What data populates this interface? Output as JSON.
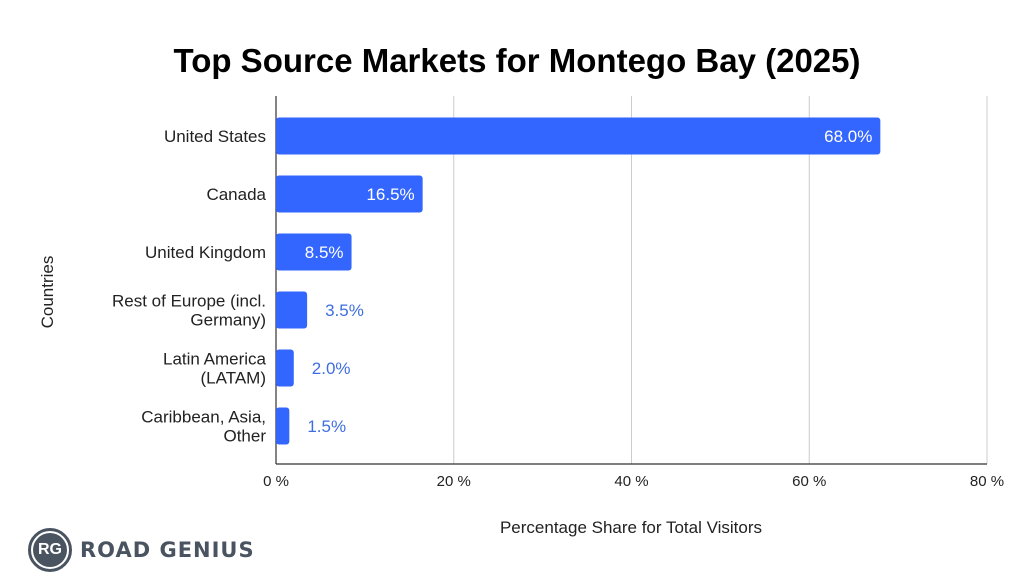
{
  "chart_data": {
    "type": "bar",
    "orientation": "horizontal",
    "title": "Top Source Markets for Montego Bay (2025)",
    "xlabel": "Percentage Share for Total Visitors",
    "ylabel": "Countries",
    "categories": [
      [
        "United States"
      ],
      [
        "Canada"
      ],
      [
        "United Kingdom"
      ],
      [
        "Rest of Europe (incl.",
        "Germany)"
      ],
      [
        "Latin America",
        "(LATAM)"
      ],
      [
        "Caribbean, Asia,",
        "Other"
      ]
    ],
    "values": [
      68.0,
      16.5,
      8.5,
      3.5,
      2.0,
      1.5
    ],
    "value_labels": [
      "68.0%",
      "16.5%",
      "8.5%",
      "3.5%",
      "2.0%",
      "1.5%"
    ],
    "xlim": [
      0,
      80
    ],
    "x_ticks": [
      0,
      20,
      40,
      60,
      80
    ],
    "x_tick_labels": [
      "0 %",
      "20 %",
      "40 %",
      "60 %",
      "80 %"
    ],
    "grid": true,
    "colors": {
      "bar": "#3366ff",
      "label_inside": "#ffffff",
      "label_outside": "#3e6ee0",
      "grid": "#cccccc",
      "axis": "#333333"
    }
  },
  "branding": {
    "logo_initials": "RG",
    "logo_text": "ROAD GENIUS"
  }
}
